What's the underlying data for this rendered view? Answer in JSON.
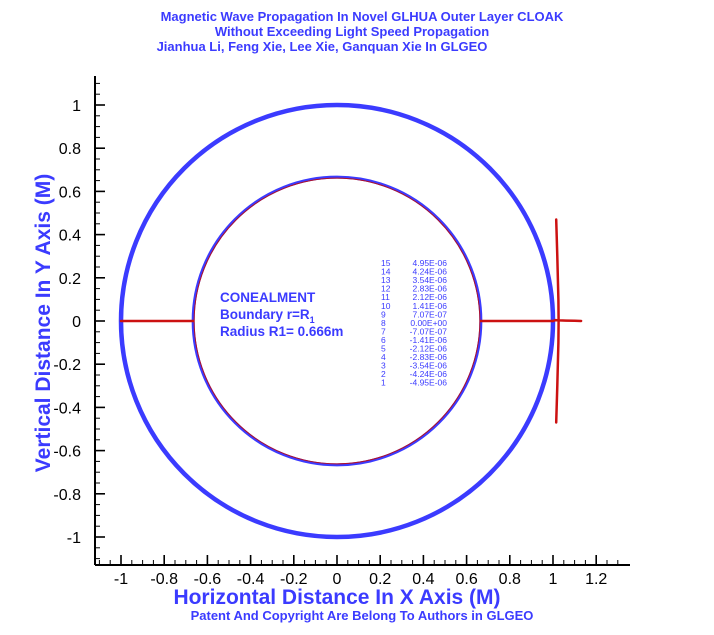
{
  "header": {
    "lines": [
      "Magnetic Wave Propagation In Novel GLHUA Outer Layer  CLOAK",
      "Without Exceeding Light Speed Propagation",
      "Jianhua Li, Feng Xie, Lee Xie, Ganquan Xie In GLGEO"
    ]
  },
  "footer": {
    "text": "Patent And Copyright Are Belong To Authors in GLGEO"
  },
  "annotation": {
    "line1": "CONEALMENT",
    "line2_prefix": "Boundary r=R",
    "line2_subscript": "1",
    "line3": "Radius R1= 0.666m"
  },
  "colors": {
    "accent_blue": "#3b3bff",
    "wave_red": "#cc1111",
    "inner_red": "#b01028"
  },
  "chart_data": {
    "type": "line",
    "title": "Magnetic Wave Propagation In Novel GLHUA Outer Layer  CLOAK",
    "xlabel": "Horizontal Distance In X Axis (M)",
    "ylabel": "Vertical Distance In Y Axis (M)",
    "xlim": [
      -1.1,
      1.3
    ],
    "ylim": [
      -1.1,
      1.1
    ],
    "x_ticks": [
      -1,
      -0.8,
      -0.6,
      -0.4,
      -0.2,
      0,
      0.2,
      0.4,
      0.6,
      0.8,
      1,
      1.2
    ],
    "x_tick_labels": [
      "-1",
      "-0.8",
      "-0.6",
      "-0.4",
      "-0.2",
      "0",
      "0.2",
      "0.4",
      "0.6",
      "0.8",
      "1",
      "1.2"
    ],
    "y_ticks": [
      1,
      0.8,
      0.6,
      0.4,
      0.2,
      0,
      -0.2,
      -0.4,
      -0.6,
      -0.8,
      -1
    ],
    "y_tick_labels": [
      "1",
      "0.8",
      "0.6",
      "0.4",
      "0.2",
      "0",
      "-0.2",
      "-0.4",
      "-0.6",
      "-0.8",
      "-1"
    ],
    "grid": false,
    "circles": [
      {
        "name": "outer boundary",
        "radius": 1.0,
        "color": "#3b3bff"
      },
      {
        "name": "inner boundary",
        "radius": 0.666,
        "color": "#3b3bff"
      }
    ],
    "series": [
      {
        "x": [
          -1.0,
          -0.666
        ],
        "y": [
          0,
          0
        ]
      },
      {
        "x": [
          0.666,
          1.0
        ],
        "y": [
          0,
          0
        ]
      },
      {
        "x": [
          1.0,
          1.01,
          1.03,
          1.06,
          1.1,
          1.13
        ],
        "y": [
          0,
          0.004,
          0.003,
          0.002,
          0.001,
          0
        ]
      },
      {
        "x": [
          1.015,
          1.02,
          1.025,
          1.026,
          1.025,
          1.02,
          1.015
        ],
        "y": [
          -0.47,
          -0.3,
          -0.1,
          0,
          0.1,
          0.3,
          0.47
        ]
      }
    ],
    "contour_levels": [
      {
        "level": "15",
        "value": "4.95E-06"
      },
      {
        "level": "14",
        "value": "4.24E-06"
      },
      {
        "level": "13",
        "value": "3.54E-06"
      },
      {
        "level": "12",
        "value": "2.83E-06"
      },
      {
        "level": "11",
        "value": "2.12E-06"
      },
      {
        "level": "10",
        "value": "1.41E-06"
      },
      {
        "level": "9",
        "value": "7.07E-07"
      },
      {
        "level": "8",
        "value": "0.00E+00"
      },
      {
        "level": "7",
        "value": "-7.07E-07"
      },
      {
        "level": "6",
        "value": "-1.41E-06"
      },
      {
        "level": "5",
        "value": "-2.12E-06"
      },
      {
        "level": "4",
        "value": "-2.83E-06"
      },
      {
        "level": "3",
        "value": "-3.54E-06"
      },
      {
        "level": "2",
        "value": "-4.24E-06"
      },
      {
        "level": "1",
        "value": "-4.95E-06"
      }
    ],
    "legend_position": "center-right"
  }
}
